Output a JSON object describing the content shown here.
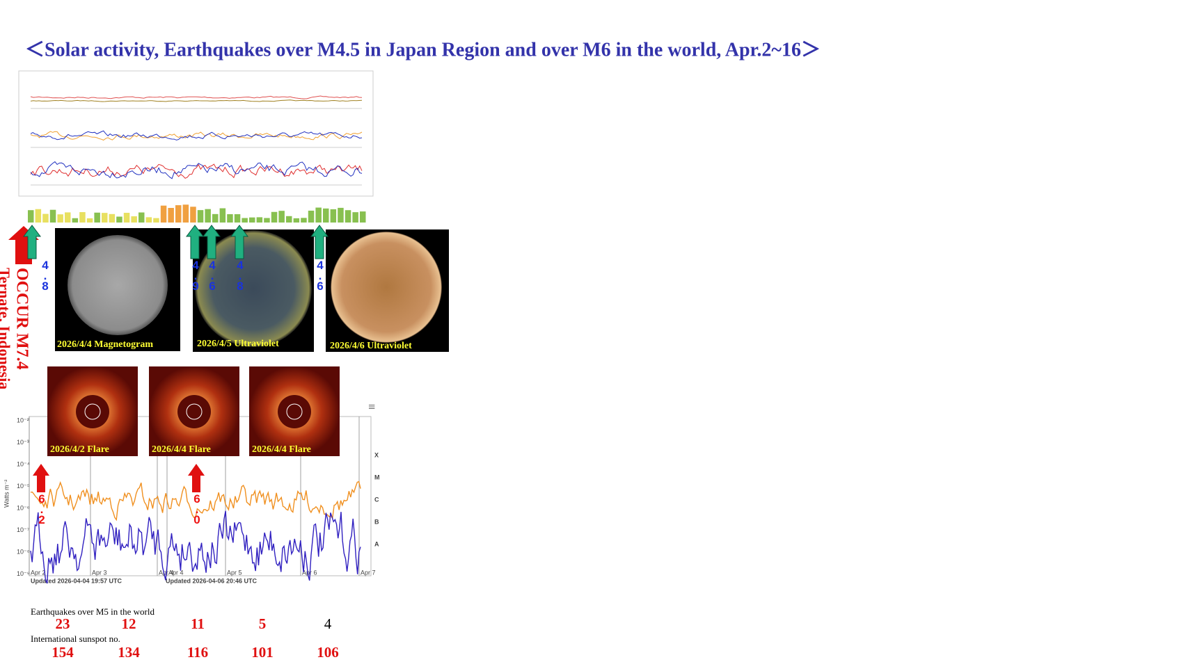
{
  "title": "＜Solar activity, Earthquakes over M4.5 in Japan Region and over M6 in the world, Apr.2~16＞",
  "images": [
    "2026/4/4 Magnetogram",
    "2026/4/5 Ultraviolet",
    "2026/4/6 Ultraviolet"
  ],
  "flares": [
    "2026/4/2 Flare",
    "2026/4/4 Flare",
    "2026/4/4 Flare"
  ],
  "quake_arrows": [
    "4.8",
    "4.9",
    "4.6",
    "4.8",
    "4.6"
  ],
  "flare_arrows": [
    "6.2",
    "6.0"
  ],
  "major_quake": {
    "line1": "OCCUR M7.4",
    "line2": "Ternate, Indonesia"
  },
  "xray_plot": {
    "y_label": "Watts m⁻²",
    "classes": [
      "X",
      "M",
      "C",
      "B",
      "A"
    ],
    "y_ticks": [
      "10⁻²",
      "10⁻³",
      "10⁻⁴",
      "10⁻⁵",
      "10⁻⁶",
      "10⁻⁷",
      "10⁻⁸",
      "10⁻⁹"
    ],
    "x_labels": [
      "Apr 2",
      "Apr 3",
      "Apr 4",
      "Apr 4",
      "Apr 5",
      "Apr 6",
      "Apr 7"
    ],
    "updated": [
      "Updated 2026-04-04 19:57 UTC",
      "Updated 2026-04-06 20:46 UTC"
    ]
  },
  "earthquakes": {
    "label": "Earthquakes over M5 in the world",
    "counts": [
      23,
      12,
      11,
      5,
      4
    ]
  },
  "sunspots": {
    "label": "International sunspot no.",
    "counts": [
      154,
      134,
      116,
      101,
      106
    ]
  }
}
